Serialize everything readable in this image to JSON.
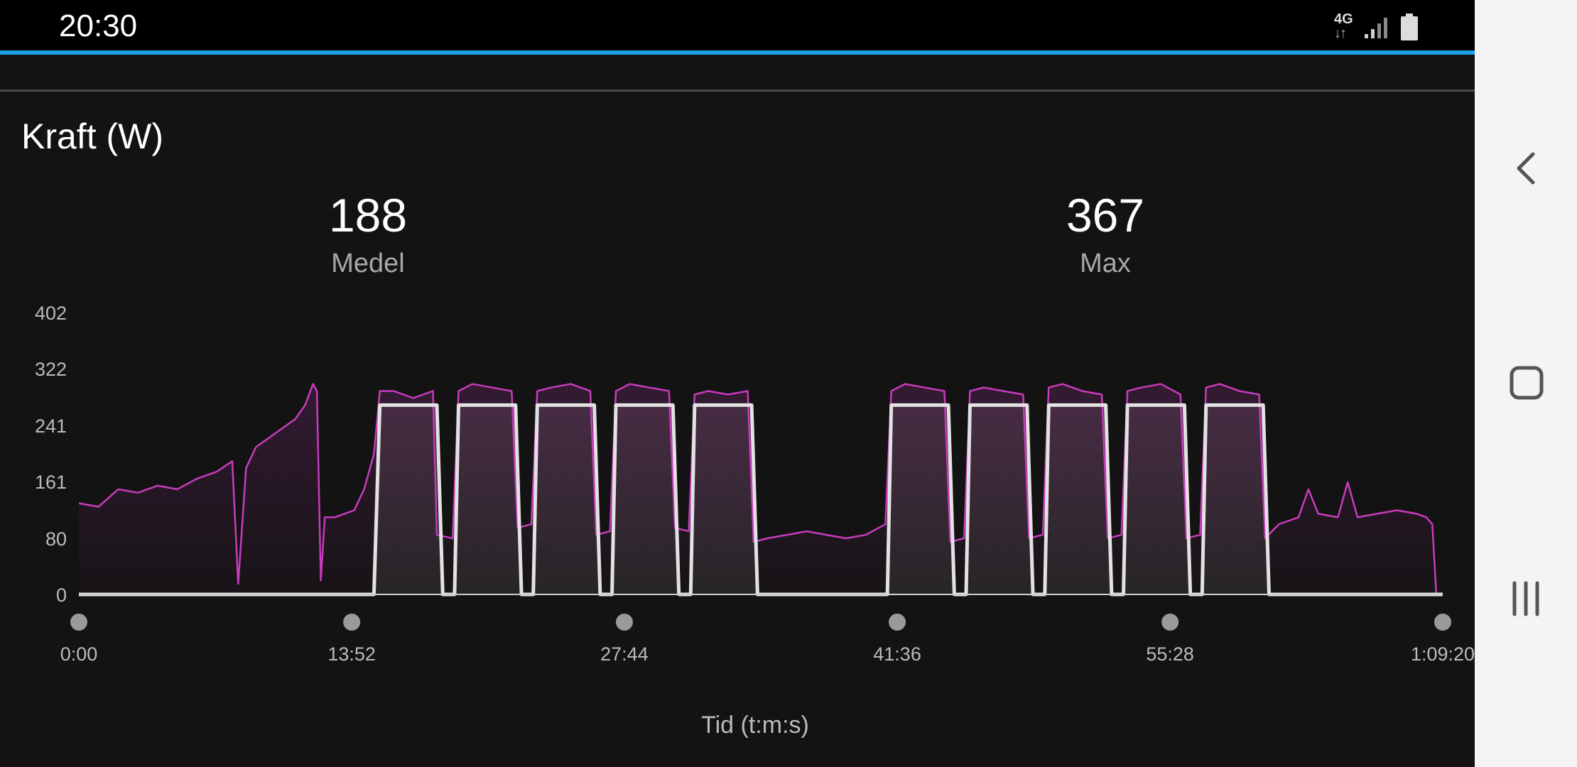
{
  "status_bar": {
    "time": "20:30",
    "network": "4G",
    "network_arrows": "↓↑"
  },
  "colors": {
    "accent": "#1e9fe3",
    "power_line": "#c83bbd",
    "target_line": "#e2e2e2",
    "background": "#131313"
  },
  "chart_title": "Kraft (W)",
  "stats": [
    {
      "value": "188",
      "label": "Medel"
    },
    {
      "value": "367",
      "label": "Max"
    }
  ],
  "chart_data": {
    "type": "line",
    "title": "Kraft (W)",
    "xlabel": "Tid (t:m:s)",
    "ylabel": "",
    "xlim": [
      0,
      69.33
    ],
    "ylim": [
      0,
      402
    ],
    "x_unit": "minutes",
    "y_ticks": [
      "402",
      "322",
      "241",
      "161",
      "80",
      "0"
    ],
    "y_tick_values": [
      402,
      322,
      241,
      161,
      80,
      0
    ],
    "x_ticks": [
      "0:00",
      "13:52",
      "27:44",
      "41:36",
      "55:28",
      "1:09:20"
    ],
    "x_tick_values": [
      0,
      13.87,
      27.73,
      41.6,
      55.47,
      69.33
    ],
    "series": [
      {
        "values": [
          [
            0,
            130
          ],
          [
            1,
            125
          ],
          [
            2,
            150
          ],
          [
            3,
            145
          ],
          [
            4,
            155
          ],
          [
            5,
            150
          ],
          [
            6,
            165
          ],
          [
            7,
            175
          ],
          [
            7.8,
            190
          ],
          [
            8.1,
            15
          ],
          [
            8.5,
            180
          ],
          [
            9,
            210
          ],
          [
            10,
            230
          ],
          [
            11,
            250
          ],
          [
            11.5,
            270
          ],
          [
            11.9,
            300
          ],
          [
            12.1,
            290
          ],
          [
            12.3,
            20
          ],
          [
            12.5,
            110
          ],
          [
            13,
            110
          ],
          [
            14,
            120
          ],
          [
            14.5,
            150
          ],
          [
            15,
            200
          ],
          [
            15.3,
            290
          ],
          [
            16,
            290
          ],
          [
            17,
            280
          ],
          [
            18,
            290
          ],
          [
            18.2,
            85
          ],
          [
            19,
            80
          ],
          [
            19.3,
            290
          ],
          [
            20,
            300
          ],
          [
            21,
            295
          ],
          [
            22,
            290
          ],
          [
            22.3,
            95
          ],
          [
            23,
            100
          ],
          [
            23.3,
            290
          ],
          [
            24,
            295
          ],
          [
            25,
            300
          ],
          [
            26,
            290
          ],
          [
            26.3,
            85
          ],
          [
            27,
            90
          ],
          [
            27.3,
            290
          ],
          [
            28,
            300
          ],
          [
            29,
            295
          ],
          [
            30,
            290
          ],
          [
            30.3,
            95
          ],
          [
            31,
            90
          ],
          [
            31.3,
            285
          ],
          [
            32,
            290
          ],
          [
            33,
            285
          ],
          [
            34,
            290
          ],
          [
            34.3,
            75
          ],
          [
            35,
            80
          ],
          [
            36,
            85
          ],
          [
            37,
            90
          ],
          [
            38,
            85
          ],
          [
            39,
            80
          ],
          [
            40,
            85
          ],
          [
            41,
            100
          ],
          [
            41.3,
            290
          ],
          [
            42,
            300
          ],
          [
            43,
            295
          ],
          [
            44,
            290
          ],
          [
            44.3,
            75
          ],
          [
            45,
            80
          ],
          [
            45.3,
            290
          ],
          [
            46,
            295
          ],
          [
            47,
            290
          ],
          [
            48,
            285
          ],
          [
            48.3,
            80
          ],
          [
            49,
            85
          ],
          [
            49.3,
            295
          ],
          [
            50,
            300
          ],
          [
            51,
            290
          ],
          [
            52,
            285
          ],
          [
            52.3,
            80
          ],
          [
            53,
            85
          ],
          [
            53.3,
            290
          ],
          [
            54,
            295
          ],
          [
            55,
            300
          ],
          [
            56,
            285
          ],
          [
            56.3,
            80
          ],
          [
            57,
            85
          ],
          [
            57.3,
            295
          ],
          [
            58,
            300
          ],
          [
            59,
            290
          ],
          [
            60,
            285
          ],
          [
            60.3,
            80
          ],
          [
            61,
            100
          ],
          [
            62,
            110
          ],
          [
            62.5,
            150
          ],
          [
            63,
            115
          ],
          [
            64,
            110
          ],
          [
            64.5,
            160
          ],
          [
            65,
            110
          ],
          [
            66,
            115
          ],
          [
            67,
            120
          ],
          [
            68,
            115
          ],
          [
            68.5,
            110
          ],
          [
            68.8,
            100
          ],
          [
            69,
            0
          ]
        ]
      },
      {
        "values": [
          [
            0,
            0
          ],
          [
            15,
            0
          ],
          [
            15.3,
            270
          ],
          [
            18.2,
            270
          ],
          [
            18.5,
            0
          ],
          [
            19.1,
            0
          ],
          [
            19.3,
            270
          ],
          [
            22.2,
            270
          ],
          [
            22.5,
            0
          ],
          [
            23.1,
            0
          ],
          [
            23.3,
            270
          ],
          [
            26.2,
            270
          ],
          [
            26.5,
            0
          ],
          [
            27.1,
            0
          ],
          [
            27.3,
            270
          ],
          [
            30.2,
            270
          ],
          [
            30.5,
            0
          ],
          [
            31.1,
            0
          ],
          [
            31.3,
            270
          ],
          [
            34.2,
            270
          ],
          [
            34.5,
            0
          ],
          [
            41.1,
            0
          ],
          [
            41.3,
            270
          ],
          [
            44.2,
            270
          ],
          [
            44.5,
            0
          ],
          [
            45.1,
            0
          ],
          [
            45.3,
            270
          ],
          [
            48.2,
            270
          ],
          [
            48.5,
            0
          ],
          [
            49.1,
            0
          ],
          [
            49.3,
            270
          ],
          [
            52.2,
            270
          ],
          [
            52.5,
            0
          ],
          [
            53.1,
            0
          ],
          [
            53.3,
            270
          ],
          [
            56.2,
            270
          ],
          [
            56.5,
            0
          ],
          [
            57.1,
            0
          ],
          [
            57.3,
            270
          ],
          [
            60.2,
            270
          ],
          [
            60.5,
            0
          ],
          [
            69.33,
            0
          ]
        ]
      }
    ],
    "grid": false,
    "legend": "none"
  }
}
